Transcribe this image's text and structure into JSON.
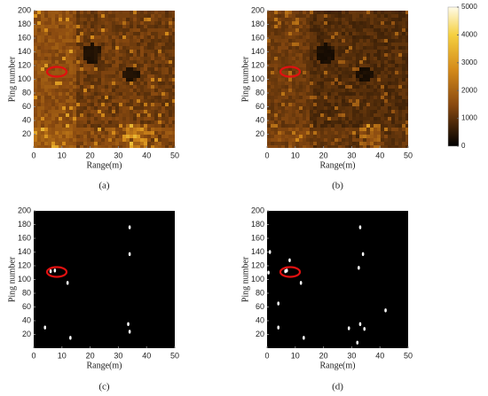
{
  "chart_data": [
    {
      "type": "heatmap",
      "caption": "(a)",
      "xlabel": "Range(m)",
      "ylabel": "Ping number",
      "xlim": [
        0,
        50
      ],
      "ylim": [
        0,
        200
      ],
      "xticks": [
        0,
        10,
        20,
        30,
        40,
        50
      ],
      "yticks": [
        20,
        40,
        60,
        80,
        100,
        120,
        140,
        160,
        180,
        200
      ]
    },
    {
      "type": "heatmap",
      "caption": "(b)",
      "xlabel": "Range(m)",
      "ylabel": "Ping number",
      "xlim": [
        0,
        50
      ],
      "ylim": [
        0,
        200
      ],
      "xticks": [
        0,
        10,
        20,
        30,
        40,
        50
      ],
      "yticks": [
        20,
        40,
        60,
        80,
        100,
        120,
        140,
        160,
        180,
        200
      ],
      "clim": [
        0,
        5000
      ],
      "cticks": [
        0,
        1000,
        2000,
        3000,
        4000,
        5000
      ]
    },
    {
      "type": "scatter",
      "caption": "(c)",
      "xlabel": "Range(m)",
      "ylabel": "Ping number",
      "xlim": [
        0,
        50
      ],
      "ylim": [
        0,
        200
      ],
      "xticks": [
        0,
        10,
        20,
        30,
        40,
        50
      ],
      "yticks": [
        20,
        40,
        60,
        80,
        100,
        120,
        140,
        160,
        180,
        200
      ],
      "x": [
        6,
        7.5,
        12,
        34,
        34,
        4,
        13,
        33.5,
        34
      ],
      "y": [
        112,
        113,
        95,
        176,
        137,
        30,
        15,
        35,
        24
      ]
    },
    {
      "type": "scatter",
      "caption": "(d)",
      "xlabel": "Range(m)",
      "ylabel": "Ping number",
      "xlim": [
        0,
        50
      ],
      "ylim": [
        0,
        200
      ],
      "xticks": [
        0,
        10,
        20,
        30,
        40,
        50
      ],
      "yticks": [
        20,
        40,
        60,
        80,
        100,
        120,
        140,
        160,
        180,
        200
      ],
      "x": [
        33,
        34,
        32.5,
        8,
        7,
        12,
        1,
        4,
        4,
        13,
        33,
        34.5,
        29,
        42,
        0.5,
        32,
        6.5
      ],
      "y": [
        176,
        137,
        117,
        128,
        113,
        95,
        140,
        65,
        30,
        15,
        35,
        28,
        29,
        55,
        110,
        8,
        112
      ]
    }
  ]
}
